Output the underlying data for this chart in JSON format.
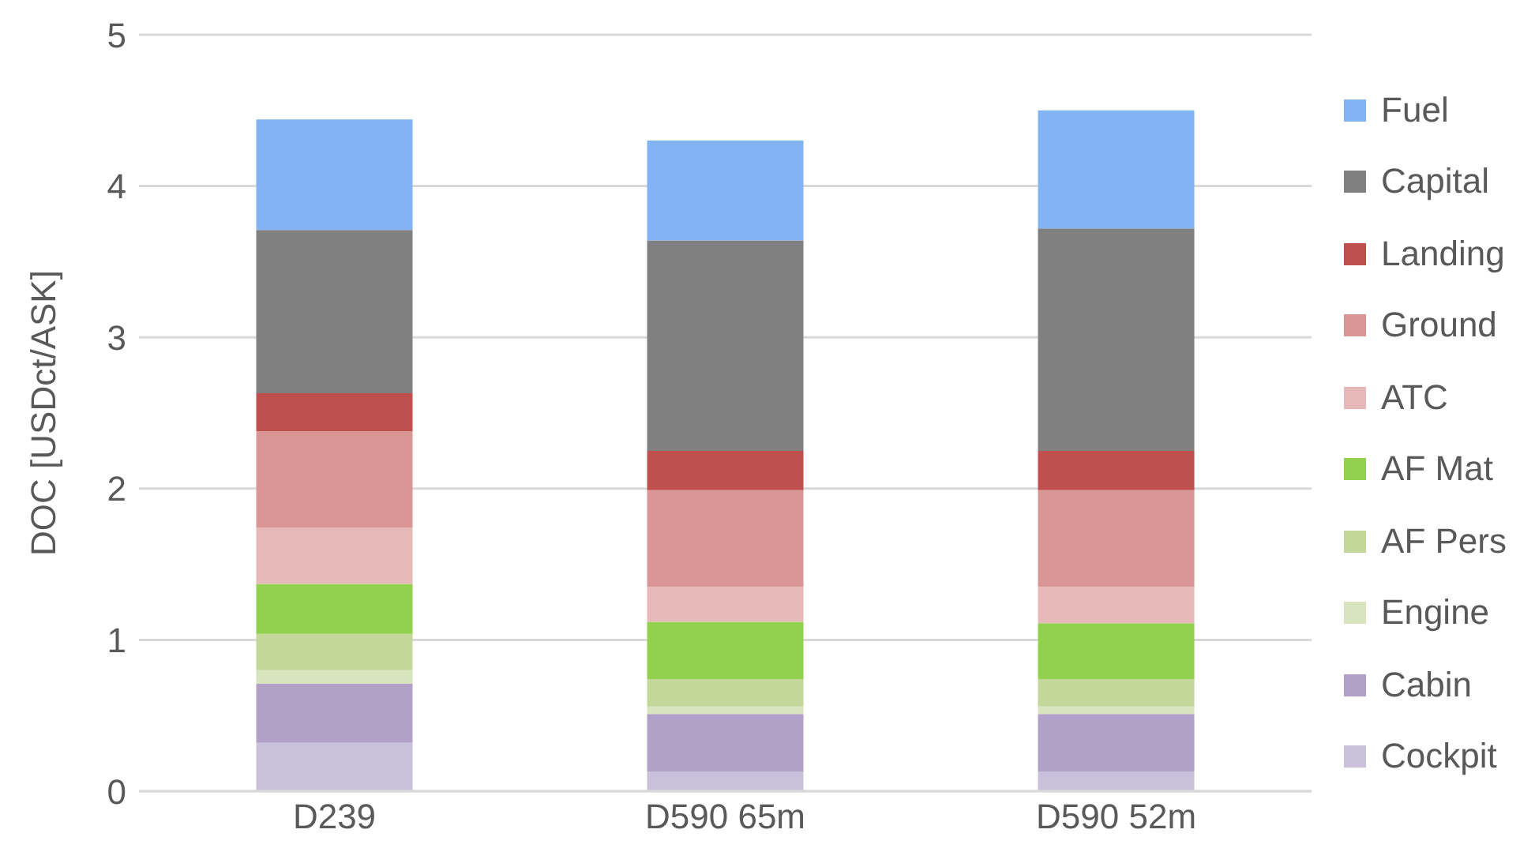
{
  "chart_data": {
    "type": "bar",
    "stacked": true,
    "ylabel": "DOC [USDct/ASK]",
    "categories": [
      "D239",
      "D590 65m",
      "D590 52m"
    ],
    "ylim": [
      0,
      5
    ],
    "yticks": [
      0,
      1,
      2,
      3,
      4,
      5
    ],
    "grid": "y",
    "legend": "right",
    "series": [
      {
        "name": "Cockpit",
        "color": "#c9c0db",
        "values": [
          0.32,
          0.13,
          0.13
        ]
      },
      {
        "name": "Cabin",
        "color": "#b1a1c8",
        "values": [
          0.39,
          0.38,
          0.38
        ]
      },
      {
        "name": "Engine",
        "color": "#d8e4bd",
        "values": [
          0.09,
          0.05,
          0.05
        ]
      },
      {
        "name": "AF Pers",
        "color": "#c4d79b",
        "values": [
          0.24,
          0.18,
          0.18
        ]
      },
      {
        "name": "AF Mat",
        "color": "#92d050",
        "values": [
          0.33,
          0.38,
          0.37
        ]
      },
      {
        "name": "ATC",
        "color": "#e6b9b8",
        "values": [
          0.37,
          0.23,
          0.24
        ]
      },
      {
        "name": "Ground",
        "color": "#d99694",
        "values": [
          0.64,
          0.64,
          0.64
        ]
      },
      {
        "name": "Landing",
        "color": "#c0504d",
        "values": [
          0.25,
          0.26,
          0.26
        ]
      },
      {
        "name": "Capital",
        "color": "#808080",
        "values": [
          1.08,
          1.39,
          1.47
        ]
      },
      {
        "name": "Fuel",
        "color": "#82b4f4",
        "values": [
          0.73,
          0.66,
          0.78
        ]
      }
    ]
  }
}
